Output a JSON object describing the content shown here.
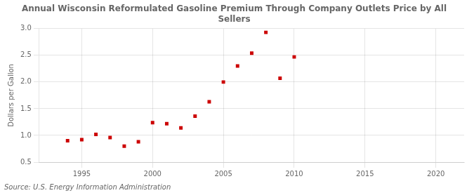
{
  "chart_data": {
    "type": "scatter",
    "title": "Annual Wisconsin Reformulated Gasoline Premium Through Company Outlets Price by All\nSellers",
    "y_label": "Dollars per Gallon",
    "annotations": [
      "Source: U.S. Energy Information Administration"
    ],
    "x": [
      1994,
      1995,
      1996,
      1997,
      1998,
      1999,
      2000,
      2001,
      2002,
      2003,
      2004,
      2005,
      2006,
      2007,
      2008,
      2009,
      2010
    ],
    "values": [
      0.9,
      0.92,
      1.02,
      0.96,
      0.8,
      0.88,
      1.24,
      1.22,
      1.14,
      1.36,
      1.63,
      2.0,
      2.3,
      2.54,
      2.93,
      2.07,
      2.47
    ],
    "color": "#cc0000",
    "marker": "square",
    "xlim": [
      1992,
      2022
    ],
    "ylim": [
      0.5,
      3.0
    ],
    "xticks": [
      1995,
      2000,
      2005,
      2010,
      2015,
      2020
    ],
    "yticks": [
      0.5,
      {
        "value": 1.0,
        "label": "1.0"
      },
      1.5,
      {
        "value": 2.0,
        "label": "2.0"
      },
      2.5,
      {
        "value": 3.0,
        "label": "3.0"
      }
    ],
    "grid": true
  }
}
